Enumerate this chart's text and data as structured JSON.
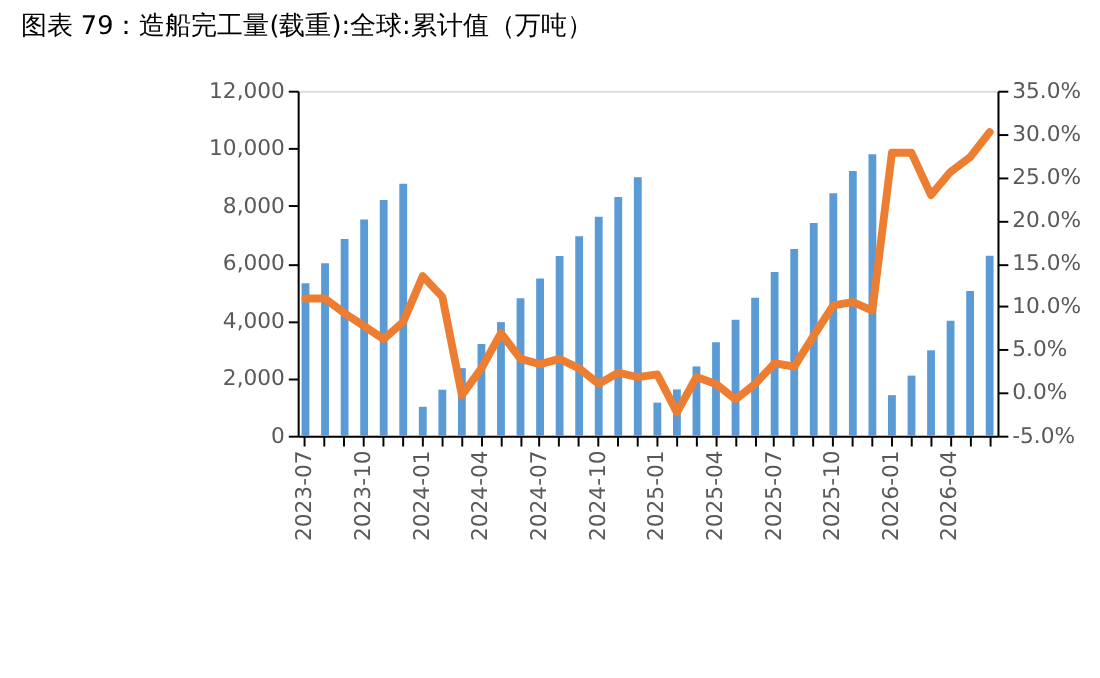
{
  "chart_data": {
    "type": "bar",
    "title": "图表 79：造船完工量(载重):全球:累计值（万吨）",
    "categories": [
      "2023-07",
      null,
      null,
      "2023-10",
      null,
      null,
      "2024-01",
      null,
      null,
      "2024-04",
      null,
      null,
      "2024-07",
      null,
      null,
      "2024-10",
      null,
      null,
      "2025-01",
      null,
      null,
      "2025-04",
      null,
      null,
      "2025-07",
      null,
      null,
      "2025-10",
      null,
      null,
      "2026-01",
      null,
      null,
      "2026-04",
      null,
      null
    ],
    "series": [
      {
        "color": "#5b9bd5",
        "values": [
          5300,
          6000,
          6840,
          7520,
          8200,
          8760,
          1010,
          1600,
          2350,
          3190,
          3950,
          4780,
          5470,
          6250,
          6940,
          7620,
          8300,
          8990,
          1150,
          1610,
          2410,
          3250,
          4030,
          4800,
          5690,
          6490,
          7400,
          8430,
          9210,
          9790,
          1410,
          2090,
          2970,
          4000,
          5030,
          6260
        ]
      },
      {
        "type": "line",
        "axis": "y2",
        "color": "#ed7d31",
        "line_style": "solid",
        "values": [
          10.9,
          10.9,
          9.2,
          7.7,
          6.2,
          8.2,
          13.5,
          11.1,
          -0.3,
          2.8,
          6.9,
          3.9,
          3.3,
          3.9,
          2.8,
          1.0,
          2.3,
          1.8,
          2.1,
          -2.3,
          1.8,
          1.0,
          -0.8,
          1.0,
          3.4,
          3.0,
          6.6,
          10.1,
          10.5,
          9.5,
          27.8,
          27.8,
          22.9,
          25.6,
          27.3,
          30.2
        ]
      }
    ],
    "ylim": [
      0,
      12000
    ],
    "yticks": [
      0,
      {
        "value": 2000,
        "label": "2,000"
      },
      {
        "value": 4000,
        "label": "4,000"
      },
      {
        "value": 6000,
        "label": "6,000"
      },
      {
        "value": 8000,
        "label": "8,000"
      },
      {
        "value": 10000,
        "label": "10,000"
      },
      {
        "value": 12000,
        "label": "12,000"
      }
    ],
    "y2lim": [
      -5,
      35
    ],
    "y2ticks": [
      {
        "value": -5,
        "label": "-5.0%"
      },
      {
        "value": 0,
        "label": "0.0%"
      },
      {
        "value": 5,
        "label": "5.0%"
      },
      {
        "value": 10,
        "label": "10.0%"
      },
      {
        "value": 15,
        "label": "15.0%"
      },
      {
        "value": 20,
        "label": "20.0%"
      },
      {
        "value": 25,
        "label": "25.0%"
      },
      {
        "value": 30,
        "label": "30.0%"
      },
      {
        "value": 35,
        "label": "35.0%"
      }
    ],
    "grid": false
  }
}
